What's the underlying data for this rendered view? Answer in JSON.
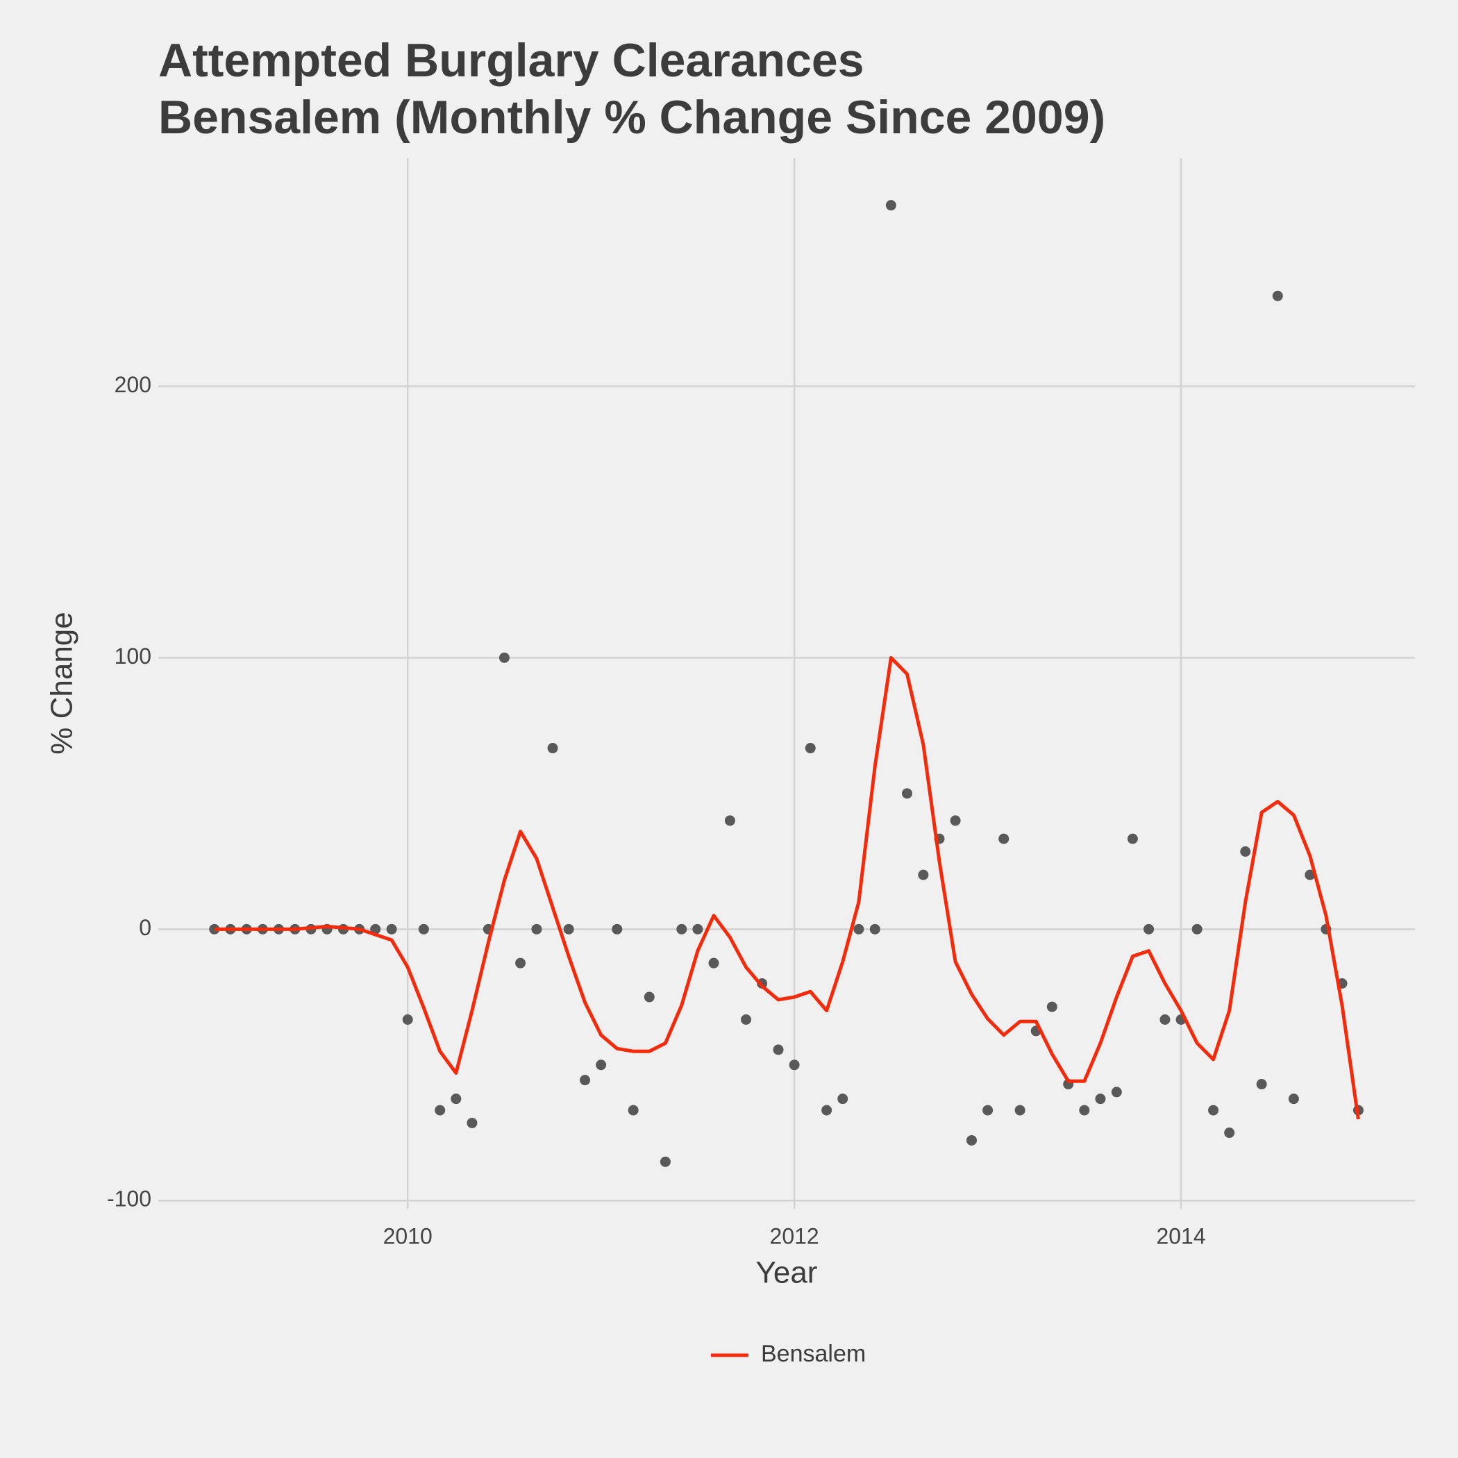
{
  "chart_data": {
    "type": "line",
    "title": [
      "Attempted Burglary Clearances",
      "Bensalem (Monthly % Change Since 2009)"
    ],
    "x_label": "Year",
    "y_label": "% Change",
    "x": [
      2009,
      2009.083,
      2009.167,
      2009.25,
      2009.333,
      2009.417,
      2009.5,
      2009.583,
      2009.667,
      2009.75,
      2009.833,
      2009.917,
      2010,
      2010.083,
      2010.167,
      2010.25,
      2010.333,
      2010.417,
      2010.5,
      2010.583,
      2010.667,
      2010.75,
      2010.833,
      2010.917,
      2011,
      2011.083,
      2011.167,
      2011.25,
      2011.333,
      2011.417,
      2011.5,
      2011.583,
      2011.667,
      2011.75,
      2011.833,
      2011.917,
      2012,
      2012.083,
      2012.167,
      2012.25,
      2012.333,
      2012.417,
      2012.5,
      2012.583,
      2012.667,
      2012.75,
      2012.833,
      2012.917,
      2013,
      2013.083,
      2013.167,
      2013.25,
      2013.333,
      2013.417,
      2013.5,
      2013.583,
      2013.667,
      2013.75,
      2013.833,
      2013.917,
      2014,
      2014.083,
      2014.167,
      2014.25,
      2014.333,
      2014.417,
      2014.5,
      2014.583,
      2014.667,
      2014.75,
      2014.833,
      2014.917
    ],
    "series": [
      {
        "kind": "scatter",
        "color": "#595959",
        "values": [
          0,
          0,
          0,
          0,
          0,
          0,
          0,
          0,
          0,
          0,
          0,
          0,
          -33.3,
          0,
          -66.7,
          -62.5,
          -71.4,
          0,
          100,
          -12.5,
          0,
          66.7,
          0,
          -55.6,
          -50,
          0,
          -66.7,
          -25,
          -85.7,
          0,
          0,
          -12.5,
          40,
          -33.3,
          -20,
          -44.4,
          -50,
          66.7,
          -66.7,
          -62.5,
          0,
          0,
          266.7,
          50,
          20,
          33.3,
          40,
          -77.8,
          -66.7,
          33.3,
          -66.7,
          -37.5,
          -28.6,
          -57.1,
          -66.7,
          -62.5,
          -60,
          33.3,
          0,
          -33.3,
          -33.3,
          0,
          -66.7,
          -75,
          28.6,
          -57.1,
          233.3,
          -62.5,
          20,
          0,
          -20,
          -66.7
        ]
      },
      {
        "kind": "line",
        "name": "Bensalem",
        "color": "#f52a0a",
        "values": [
          0,
          0,
          0,
          0,
          0,
          0,
          0.5,
          1,
          0.5,
          0,
          -2,
          -4,
          -14,
          -29,
          -45,
          -53,
          -30,
          -5,
          18,
          36,
          26,
          8,
          -10,
          -27,
          -39,
          -44,
          -45,
          -45,
          -42,
          -28,
          -8,
          5,
          -3,
          -14,
          -21,
          -26,
          -25,
          -23,
          -30,
          -12,
          10,
          60,
          100,
          94,
          68,
          25,
          -12,
          -24,
          -33,
          -39,
          -34,
          -34,
          -46,
          -56,
          -56,
          -42,
          -25,
          -10,
          -8,
          -20,
          -30,
          -42,
          -48,
          -30,
          10,
          43,
          47,
          42,
          27,
          5,
          -28,
          -70
        ]
      }
    ],
    "xlim": [
      2008.71,
      2015.21
    ],
    "ylim": [
      -103,
      284
    ],
    "xticks": [
      2010,
      2012,
      2014
    ],
    "yticks": [
      -100,
      0,
      100,
      200
    ],
    "grid": true,
    "legend": "bottom"
  }
}
